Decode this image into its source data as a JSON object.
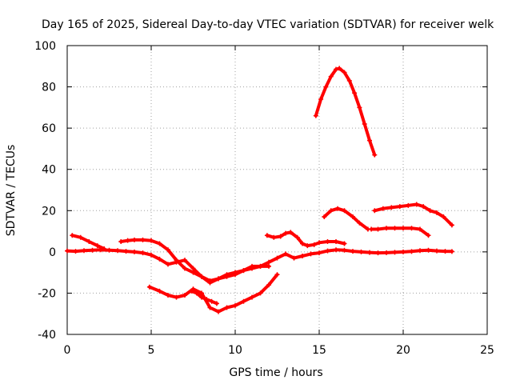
{
  "chart_data": {
    "type": "scatter",
    "title": "Day 165 of 2025, Sidereal Day-to-day VTEC variation (SDTVAR) for receiver welk",
    "xlabel": "GPS time / hours",
    "ylabel": "SDTVAR / TECUs",
    "xlim": [
      0,
      25
    ],
    "ylim": [
      -40,
      100
    ],
    "xticks": [
      0,
      5,
      10,
      15,
      20,
      25
    ],
    "yticks": [
      -40,
      -20,
      0,
      20,
      40,
      60,
      80,
      100
    ],
    "grid": true,
    "legend": "none",
    "series_color": "#ff0000",
    "series": [
      {
        "name": "s1",
        "x": [
          0.0,
          0.5,
          1.0,
          1.5,
          2.0,
          2.5,
          3.0,
          3.5,
          4.0,
          4.5,
          5.0,
          5.5,
          6.0,
          6.5,
          7.0,
          7.5,
          8.0,
          8.5,
          9.0,
          9.5,
          10.0,
          10.5,
          11.0,
          11.5,
          12.0,
          12.5,
          13.0,
          13.5,
          14.0,
          14.5,
          15.0,
          15.5,
          16.0,
          16.5,
          17.0,
          17.5,
          18.0,
          18.5,
          19.0,
          19.5,
          20.0,
          20.5,
          21.0,
          21.5,
          22.0,
          22.5,
          22.9
        ],
        "y": [
          0.5,
          0.3,
          0.6,
          0.8,
          1.0,
          0.8,
          0.6,
          0.3,
          0.0,
          -0.5,
          -1.5,
          -3.5,
          -6,
          -5,
          -4,
          -8,
          -12,
          -15,
          -13,
          -12,
          -11,
          -9,
          -8,
          -7,
          -5,
          -3,
          -1,
          -3,
          -2,
          -1,
          -0.5,
          0.5,
          1.0,
          0.8,
          0.3,
          0.0,
          -0.3,
          -0.5,
          -0.4,
          -0.2,
          0.0,
          0.2,
          0.6,
          0.8,
          0.5,
          0.3,
          0.2
        ]
      },
      {
        "name": "s2",
        "x": [
          0.3,
          0.8,
          1.3,
          1.8,
          2.2
        ],
        "y": [
          8,
          7,
          5,
          3,
          1.5
        ]
      },
      {
        "name": "s3",
        "x": [
          3.2,
          3.6,
          4.0,
          4.5,
          5.0,
          5.5,
          6.0,
          6.5,
          7.0,
          7.5,
          8.0,
          8.5,
          9.0,
          9.5,
          10.0,
          10.5,
          11.0,
          11.5,
          12.0
        ],
        "y": [
          5,
          5.5,
          5.8,
          5.8,
          5.5,
          4,
          1,
          -4,
          -8,
          -10,
          -12,
          -14,
          -13,
          -11,
          -10,
          -9,
          -7,
          -7,
          -7
        ]
      },
      {
        "name": "s4",
        "x": [
          4.9,
          5.5,
          6.0,
          6.5,
          7.0,
          7.5,
          8.0,
          8.5,
          9.0,
          9.5,
          10.0,
          10.5,
          11.0,
          11.5,
          12.0,
          12.5
        ],
        "y": [
          -17,
          -19,
          -21,
          -22,
          -21,
          -18,
          -20,
          -27,
          -29,
          -27,
          -26,
          -24,
          -22,
          -20,
          -16,
          -11
        ]
      },
      {
        "name": "s5",
        "x": [
          7.4,
          7.7,
          8.0,
          8.3,
          8.6,
          8.9
        ],
        "y": [
          -19,
          -20,
          -22,
          -23,
          -24,
          -25
        ]
      },
      {
        "name": "s6",
        "x": [
          11.9,
          12.3,
          12.7,
          13.0,
          13.3,
          13.7,
          14.0,
          14.3,
          14.7,
          15.0,
          15.5,
          16.0,
          16.5
        ],
        "y": [
          8,
          7,
          7.5,
          9,
          9.5,
          7,
          4,
          3,
          3.5,
          4.5,
          5,
          5,
          4
        ]
      },
      {
        "name": "s7",
        "x": [
          14.8,
          15.1,
          15.4,
          15.7,
          16.0,
          16.2,
          16.5,
          16.8,
          17.1,
          17.4,
          17.7,
          18.0,
          18.3
        ],
        "y": [
          66,
          74,
          80,
          85,
          88.5,
          89,
          87,
          83,
          77,
          70,
          62,
          54,
          47
        ]
      },
      {
        "name": "s8",
        "x": [
          15.3,
          15.7,
          16.1,
          16.5,
          17.0,
          17.4,
          17.9
        ],
        "y": [
          17,
          20,
          21,
          20,
          17,
          14,
          11
        ]
      },
      {
        "name": "s9",
        "x": [
          18.1,
          18.5,
          19.0,
          19.5,
          20.0,
          20.5,
          21.0,
          21.5
        ],
        "y": [
          11,
          11,
          11.5,
          11.5,
          11.5,
          11.5,
          11,
          8
        ]
      },
      {
        "name": "s10",
        "x": [
          18.3,
          18.8,
          19.3,
          19.8,
          20.3,
          20.8,
          21.2,
          21.6,
          22.0,
          22.4,
          22.9
        ],
        "y": [
          20,
          21,
          21.5,
          22,
          22.5,
          23,
          22,
          20,
          19,
          17,
          13
        ]
      }
    ]
  }
}
